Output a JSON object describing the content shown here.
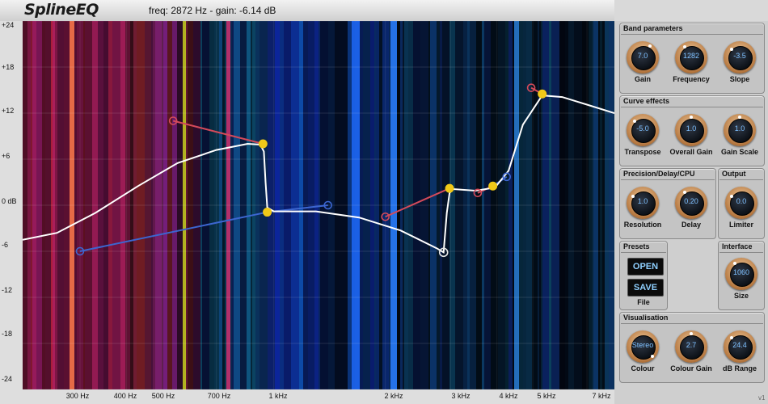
{
  "header": {
    "title": "SplineEQ",
    "readout": "freq: 2872 Hz - gain: -6.14 dB"
  },
  "y_axis": {
    "labels": [
      "+24",
      "+18",
      "+12",
      "+6",
      "0 dB",
      "-6",
      "-12",
      "-18",
      "-24"
    ],
    "values": [
      24,
      18,
      12,
      6,
      0,
      -6,
      -12,
      -18,
      -24
    ]
  },
  "x_axis": {
    "labels": [
      "300 Hz",
      "400 Hz",
      "500 Hz",
      "700 Hz",
      "1 kHz",
      "2 kHz",
      "3 kHz",
      "4 kHz",
      "5 kHz",
      "7 kHz"
    ],
    "freqs": [
      300,
      400,
      500,
      700,
      1000,
      2000,
      3000,
      4000,
      5000,
      7000
    ]
  },
  "eq_curve": {
    "range": {
      "f_min": 210,
      "f_max": 8300,
      "g_min": -24,
      "g_max": 24
    },
    "curve": [
      [
        210,
        -4.5
      ],
      [
        260,
        -3.6
      ],
      [
        330,
        -1
      ],
      [
        430,
        2.5
      ],
      [
        550,
        5.5
      ],
      [
        700,
        7.2
      ],
      [
        850,
        8
      ],
      [
        920,
        7.9
      ],
      [
        940,
        7
      ],
      [
        950,
        3
      ],
      [
        960,
        -0.3
      ],
      [
        1000,
        -0.8
      ],
      [
        1300,
        -0.8
      ],
      [
        1700,
        -1.6
      ],
      [
        2200,
        -3.3
      ],
      [
        2750,
        -5.6
      ],
      [
        2872,
        -6.14
      ],
      [
        2930,
        -1
      ],
      [
        2980,
        1.6
      ],
      [
        3050,
        2.1
      ],
      [
        3500,
        1.9
      ],
      [
        3950,
        2.3
      ],
      [
        4300,
        4.5
      ],
      [
        4700,
        10.5
      ],
      [
        5300,
        14.3
      ],
      [
        6000,
        14.1
      ],
      [
        7000,
        13.1
      ],
      [
        8300,
        12
      ]
    ],
    "handles": [
      {
        "freq": 2872,
        "gain": -6.14,
        "color": "#e8e8e8"
      }
    ],
    "control_points": [
      {
        "freq": 300,
        "gain": -6.0,
        "color": "#3c66d0"
      },
      {
        "freq": 535,
        "gain": 11.0,
        "color": "#d44a5a"
      },
      {
        "freq": 935,
        "gain": 8.0,
        "color": "#f0c818"
      },
      {
        "freq": 960,
        "gain": -0.9,
        "color": "#f0c818"
      },
      {
        "freq": 1400,
        "gain": 0,
        "color": "#3c66d0"
      },
      {
        "freq": 2000,
        "gain": -1.5,
        "color": "#d44a5a"
      },
      {
        "freq": 2980,
        "gain": 2.2,
        "color": "#f0c818"
      },
      {
        "freq": 3900,
        "gain": 2.5,
        "color": "#f0c818"
      },
      {
        "freq": 4250,
        "gain": 3.7,
        "color": "#3c66d0"
      },
      {
        "freq": 5300,
        "gain": 14.5,
        "color": "#f0c818"
      },
      {
        "freq": 4950,
        "gain": 15.3,
        "color": "#d44a5a"
      },
      {
        "freq": 3550,
        "gain": 1.6,
        "color": "#d44a5a"
      }
    ]
  },
  "panel": {
    "band_parameters": {
      "title": "Band parameters",
      "gain": {
        "label": "Gain",
        "value": "7.0"
      },
      "frequency": {
        "label": "Frequency",
        "value": "1282"
      },
      "slope": {
        "label": "Slope",
        "value": "-3.5"
      }
    },
    "curve_effects": {
      "title": "Curve effects",
      "transpose": {
        "label": "Transpose",
        "value": "-5.0"
      },
      "overall_gain": {
        "label": "Overall Gain",
        "value": "1.0"
      },
      "gain_scale": {
        "label": "Gain Scale",
        "value": "1.0"
      }
    },
    "precision": {
      "title": "Precision/Delay/CPU",
      "resolution": {
        "label": "Resolution",
        "value": "1.0"
      },
      "delay": {
        "label": "Delay",
        "value": "0.20"
      }
    },
    "output": {
      "title": "Output",
      "limiter": {
        "label": "Limiter",
        "value": "0.0"
      }
    },
    "presets": {
      "title": "Presets",
      "open": "OPEN",
      "save": "SAVE",
      "file": "File"
    },
    "interface": {
      "title": "Interface",
      "size": {
        "label": "Size",
        "value": "1060"
      }
    },
    "visualisation": {
      "title": "Visualisation",
      "colour": {
        "label": "Colour",
        "value": "Stereo"
      },
      "colour_gain": {
        "label": "Colour Gain",
        "value": "2.7"
      },
      "db_range": {
        "label": "dB Range",
        "value": "24.4"
      }
    }
  },
  "version": "v1",
  "colors": {
    "curve": "#ffffff",
    "yellow_point": "#f0c818",
    "red_point": "#d44a5a",
    "blue_point": "#3c66d0",
    "knob_value": "#7ec0ff",
    "button_text": "#8fd0ff"
  }
}
